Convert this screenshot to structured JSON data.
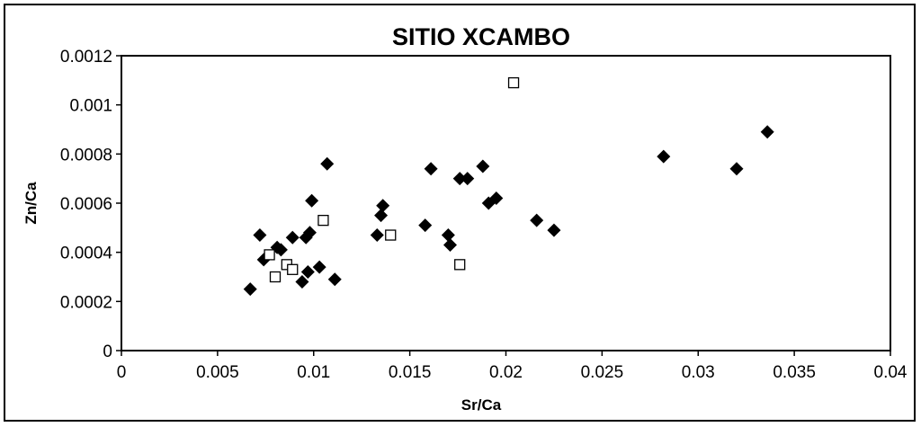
{
  "chart_data": {
    "type": "scatter",
    "title": "SITIO XCAMBO",
    "xlabel": "Sr/Ca",
    "ylabel": "Zn/Ca",
    "xlim": [
      0,
      0.04
    ],
    "ylim": [
      0,
      0.0012
    ],
    "x_ticks": [
      "0",
      "0.005",
      "0.01",
      "0.015",
      "0.02",
      "0.025",
      "0.03",
      "0.035",
      "0.04"
    ],
    "y_ticks": [
      "0",
      "0.0002",
      "0.0004",
      "0.0006",
      "0.0008",
      "0.001",
      "0.0012"
    ],
    "grid": false,
    "legend": false,
    "series": [
      {
        "marker": "filled-diamond",
        "color": "#000000",
        "points": [
          [
            0.0067,
            0.00025
          ],
          [
            0.0072,
            0.00047
          ],
          [
            0.0074,
            0.00037
          ],
          [
            0.0081,
            0.00042
          ],
          [
            0.0083,
            0.00041
          ],
          [
            0.0089,
            0.00046
          ],
          [
            0.0094,
            0.00028
          ],
          [
            0.0096,
            0.00046
          ],
          [
            0.0097,
            0.00032
          ],
          [
            0.0098,
            0.00048
          ],
          [
            0.0099,
            0.00061
          ],
          [
            0.0103,
            0.00034
          ],
          [
            0.0107,
            0.00076
          ],
          [
            0.0111,
            0.00029
          ],
          [
            0.0133,
            0.00047
          ],
          [
            0.0135,
            0.00055
          ],
          [
            0.0136,
            0.00059
          ],
          [
            0.0158,
            0.00051
          ],
          [
            0.0161,
            0.00074
          ],
          [
            0.017,
            0.00047
          ],
          [
            0.0171,
            0.00043
          ],
          [
            0.0176,
            0.0007
          ],
          [
            0.018,
            0.0007
          ],
          [
            0.0188,
            0.00075
          ],
          [
            0.0191,
            0.0006
          ],
          [
            0.0195,
            0.00062
          ],
          [
            0.0216,
            0.00053
          ],
          [
            0.0225,
            0.00049
          ],
          [
            0.0282,
            0.00079
          ],
          [
            0.032,
            0.00074
          ],
          [
            0.0336,
            0.00089
          ]
        ]
      },
      {
        "marker": "open-square",
        "color": "#000000",
        "points": [
          [
            0.0077,
            0.00039
          ],
          [
            0.008,
            0.0003
          ],
          [
            0.0086,
            0.00035
          ],
          [
            0.0089,
            0.00033
          ],
          [
            0.0105,
            0.00053
          ],
          [
            0.014,
            0.00047
          ],
          [
            0.0176,
            0.00035
          ],
          [
            0.0204,
            0.00109
          ]
        ]
      }
    ]
  }
}
